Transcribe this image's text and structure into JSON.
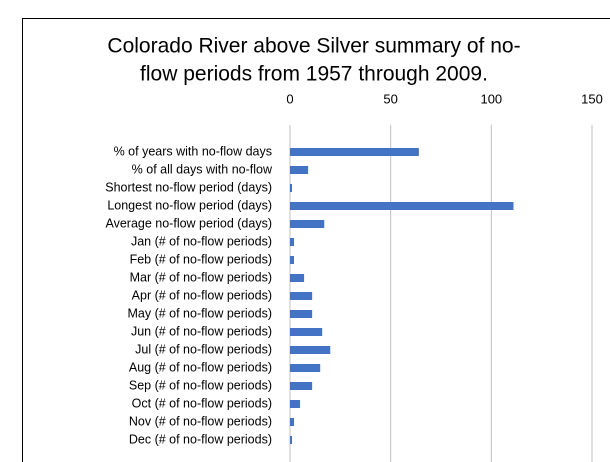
{
  "chart_data": {
    "type": "bar",
    "orientation": "horizontal",
    "title": [
      "Colorado River above Silver summary of no-",
      "flow periods from 1957 through 2009."
    ],
    "categories": [
      "% of years with no-flow days",
      "% of all days with no-flow",
      "Shortest no-flow period (days)",
      "Longest no-flow period (days)",
      "Average no-flow period (days)",
      "Jan (# of no-flow periods)",
      "Feb (# of no-flow periods)",
      "Mar (# of no-flow periods)",
      "Apr (# of no-flow periods)",
      "May (# of no-flow periods)",
      "Jun (# of no-flow periods)",
      "Jul (# of no-flow periods)",
      "Aug (# of no-flow periods)",
      "Sep (# of no-flow periods)",
      "Oct (# of no-flow periods)",
      "Nov (# of no-flow periods)",
      "Dec (# of no-flow periods)"
    ],
    "values": [
      64,
      9,
      1,
      111,
      17,
      2,
      2,
      7,
      11,
      11,
      16,
      20,
      15,
      11,
      5,
      2,
      1
    ],
    "color": "#4472c4",
    "xlim": [
      0,
      150
    ],
    "xticks": [
      0,
      50,
      100,
      150
    ],
    "grid": true
  }
}
